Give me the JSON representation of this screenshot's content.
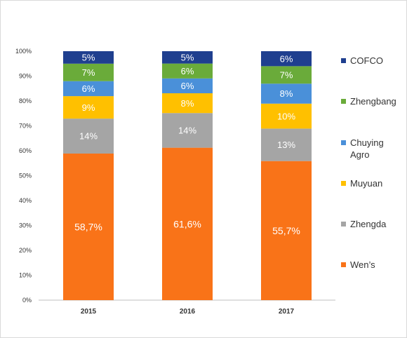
{
  "chart_data": {
    "type": "bar",
    "stacked": true,
    "percent": true,
    "categories": [
      "2015",
      "2016",
      "2017"
    ],
    "ylim": [
      0,
      100
    ],
    "yticks": [
      0,
      10,
      20,
      30,
      40,
      50,
      60,
      70,
      80,
      90,
      100
    ],
    "ytick_labels": [
      "0%",
      "10%",
      "20%",
      "30%",
      "40%",
      "50%",
      "60%",
      "70%",
      "80%",
      "90%",
      "100%"
    ],
    "grid": false,
    "legend_position": "right",
    "series": [
      {
        "name": "Wen’s",
        "color": "#f97318",
        "values": [
          58.7,
          61.6,
          55.7
        ],
        "labels": [
          "58,7%",
          "61,6%",
          "55,7%"
        ]
      },
      {
        "name": "Zhengda",
        "color": "#a5a5a5",
        "values": [
          14,
          14,
          13
        ],
        "labels": [
          "14%",
          "14%",
          "13%"
        ]
      },
      {
        "name": "Muyuan",
        "color": "#ffc000",
        "values": [
          9,
          8,
          10
        ],
        "labels": [
          "9%",
          "8%",
          "10%"
        ]
      },
      {
        "name": "Chuying Agro",
        "color": "#4a90d9",
        "values": [
          6,
          6,
          8
        ],
        "labels": [
          "6%",
          "6%",
          "8%"
        ]
      },
      {
        "name": "Zhengbang",
        "color": "#6aab3a",
        "values": [
          7,
          6,
          7
        ],
        "labels": [
          "7%",
          "6%",
          "7%"
        ]
      },
      {
        "name": "COFCO",
        "color": "#1f3f8f",
        "values": [
          5,
          5,
          6
        ],
        "labels": [
          "5%",
          "5%",
          "6%"
        ]
      }
    ]
  }
}
